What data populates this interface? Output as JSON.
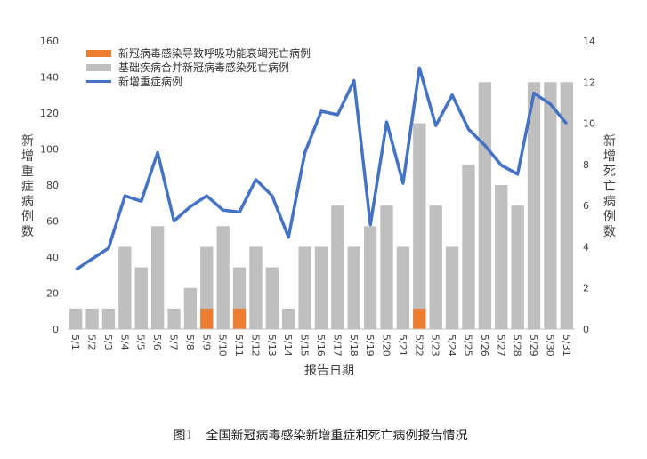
{
  "caption": "图1　全国新冠病毒感染新增重症和死亡病例报告情况",
  "colors": {
    "respiratory": "#ED7D31",
    "comorbid": "#BFBFBF",
    "severe": "#4472C4"
  },
  "chart_data": {
    "type": "bar+line",
    "title": "",
    "xlabel": "报告日期",
    "ylabel_left": "新增重症病例数",
    "ylabel_right": "新增死亡病例数",
    "ylim_left": [
      0,
      160
    ],
    "ylim_right": [
      0,
      14
    ],
    "yticks_left": [
      0,
      20,
      40,
      60,
      80,
      100,
      120,
      140,
      160
    ],
    "yticks_right": [
      0,
      2,
      4,
      6,
      8,
      10,
      12,
      14
    ],
    "legend_position": "top-left",
    "categories": [
      "5/1",
      "5/2",
      "5/3",
      "5/4",
      "5/5",
      "5/6",
      "5/7",
      "5/8",
      "5/9",
      "5/10",
      "5/11",
      "5/12",
      "5/13",
      "5/14",
      "5/15",
      "5/16",
      "5/17",
      "5/18",
      "5/19",
      "5/20",
      "5/21",
      "5/22",
      "5/23",
      "5/24",
      "5/25",
      "5/26",
      "5/27",
      "5/28",
      "5/29",
      "5/30",
      "5/31"
    ],
    "series": [
      {
        "name": "新冠病毒感染导致呼吸功能衰竭死亡病例",
        "type": "bar",
        "axis": "right",
        "values": [
          0,
          0,
          0,
          0,
          0,
          0,
          0,
          0,
          1,
          0,
          1,
          0,
          0,
          0,
          0,
          0,
          0,
          0,
          0,
          0,
          0,
          1,
          0,
          0,
          0,
          0,
          0,
          0,
          0,
          0,
          0
        ]
      },
      {
        "name": "基础疾病合并新冠病毒感染死亡病例",
        "type": "bar",
        "axis": "right",
        "values": [
          1,
          1,
          1,
          4,
          3,
          5,
          1,
          2,
          4,
          5,
          3,
          4,
          3,
          1,
          4,
          4,
          6,
          4,
          5,
          6,
          4,
          10,
          6,
          4,
          8,
          12,
          7,
          6,
          12,
          12,
          12
        ]
      },
      {
        "name": "新增重症病例",
        "type": "line",
        "axis": "left",
        "values": [
          33,
          39,
          45,
          74,
          71,
          98,
          60,
          68,
          74,
          66,
          65,
          83,
          74,
          51,
          98,
          121,
          119,
          138,
          58,
          115,
          81,
          145,
          113,
          130,
          111,
          102,
          91,
          86,
          131,
          125,
          114
        ]
      }
    ]
  }
}
